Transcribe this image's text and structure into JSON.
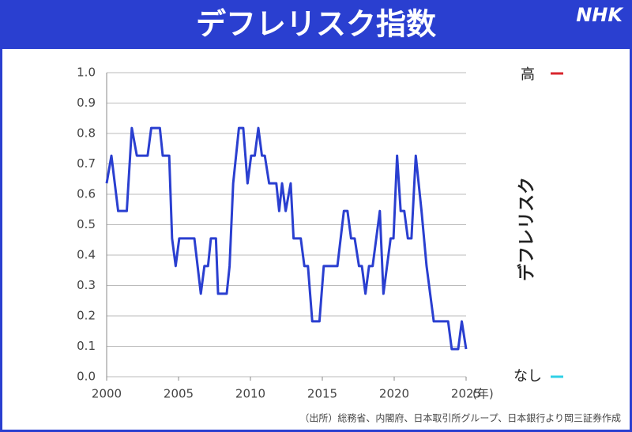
{
  "chart_data": {
    "type": "line",
    "title": "デフレリスク指数",
    "logo": "NHK",
    "xlabel": "(年)",
    "source": "（出所）総務省、内閣府、日本取引所グループ、日本銀行より岡三証券作成",
    "scale": {
      "high": "高",
      "low": "なし",
      "label": "デフレリスク"
    },
    "xlim": [
      2000,
      2025
    ],
    "xticks": [
      2000,
      2005,
      2010,
      2015,
      2020,
      2025
    ],
    "ylim": [
      0,
      1
    ],
    "yticks": [
      {
        "value": 0,
        "label": "0.0"
      },
      0.1,
      0.2,
      0.3,
      0.4,
      0.5,
      0.6,
      0.7,
      0.8,
      0.9,
      {
        "value": 1,
        "label": "1.0"
      }
    ],
    "grid": true,
    "color": "#2a3fd0",
    "x": [
      2000.0,
      2000.33,
      2000.8,
      2001.4,
      2001.75,
      2002.1,
      2002.85,
      2003.1,
      2003.7,
      2003.9,
      2004.35,
      2004.55,
      2004.8,
      2005.05,
      2006.1,
      2006.55,
      2006.8,
      2007.05,
      2007.25,
      2007.6,
      2007.75,
      2008.35,
      2008.55,
      2008.8,
      2009.2,
      2009.5,
      2009.8,
      2010.05,
      2010.3,
      2010.55,
      2010.8,
      2011.0,
      2011.3,
      2011.8,
      2012.0,
      2012.2,
      2012.45,
      2012.8,
      2013.0,
      2013.5,
      2013.75,
      2014.0,
      2014.3,
      2014.8,
      2015.1,
      2016.05,
      2016.5,
      2016.75,
      2017.0,
      2017.25,
      2017.55,
      2017.75,
      2018.0,
      2018.25,
      2018.5,
      2019.0,
      2019.25,
      2019.75,
      2019.95,
      2020.2,
      2020.45,
      2020.7,
      2020.95,
      2021.2,
      2021.5,
      2021.9,
      2022.25,
      2022.75,
      2023.75,
      2024.0,
      2024.45,
      2024.7,
      2025.0
    ],
    "values": [
      0.636,
      0.727,
      0.545,
      0.545,
      0.818,
      0.727,
      0.727,
      0.818,
      0.818,
      0.727,
      0.727,
      0.455,
      0.364,
      0.455,
      0.455,
      0.273,
      0.364,
      0.364,
      0.455,
      0.455,
      0.273,
      0.273,
      0.364,
      0.636,
      0.818,
      0.818,
      0.636,
      0.727,
      0.727,
      0.818,
      0.727,
      0.727,
      0.636,
      0.636,
      0.545,
      0.636,
      0.545,
      0.636,
      0.455,
      0.455,
      0.364,
      0.364,
      0.182,
      0.182,
      0.364,
      0.364,
      0.545,
      0.545,
      0.455,
      0.455,
      0.364,
      0.364,
      0.273,
      0.364,
      0.364,
      0.545,
      0.273,
      0.455,
      0.455,
      0.727,
      0.545,
      0.545,
      0.455,
      0.455,
      0.727,
      0.545,
      0.364,
      0.182,
      0.182,
      0.091,
      0.091,
      0.182,
      0.091
    ]
  }
}
